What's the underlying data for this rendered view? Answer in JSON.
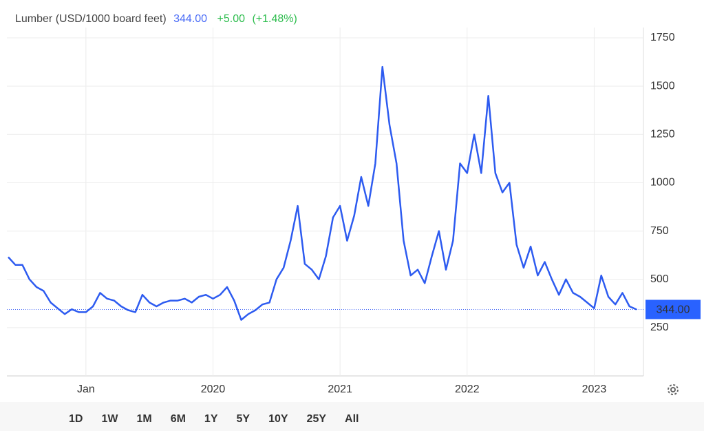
{
  "chart_data": {
    "type": "line",
    "title": "Lumber (USD/1000 board feet)",
    "current": {
      "value": 344,
      "label": "344.00"
    },
    "change": "+5.00",
    "change_pct": "(+1.48%)",
    "categories": [
      null,
      null,
      null,
      null,
      null,
      null,
      null,
      null,
      null,
      null,
      null,
      "Jan",
      null,
      null,
      null,
      null,
      null,
      null,
      null,
      null,
      null,
      null,
      null,
      null,
      null,
      null,
      null,
      null,
      null,
      "2020",
      null,
      null,
      null,
      null,
      null,
      null,
      null,
      null,
      null,
      null,
      null,
      null,
      null,
      null,
      null,
      null,
      null,
      "2021",
      null,
      null,
      null,
      null,
      null,
      null,
      null,
      null,
      null,
      null,
      null,
      null,
      null,
      null,
      null,
      null,
      null,
      "2022",
      null,
      null,
      null,
      null,
      null,
      null,
      null,
      null,
      null,
      null,
      null,
      null,
      null,
      null,
      null,
      null,
      null,
      "2023",
      null,
      null,
      null,
      null,
      null,
      null
    ],
    "series": [
      {
        "name": "Lumber",
        "color": "#2d5bf0",
        "values": [
          615,
          575,
          575,
          500,
          460,
          440,
          380,
          350,
          320,
          345,
          330,
          330,
          360,
          430,
          400,
          390,
          360,
          340,
          330,
          420,
          380,
          360,
          380,
          390,
          390,
          400,
          380,
          410,
          420,
          400,
          420,
          460,
          390,
          290,
          320,
          340,
          370,
          380,
          500,
          560,
          700,
          880,
          580,
          550,
          500,
          620,
          820,
          880,
          700,
          830,
          1030,
          880,
          1100,
          1600,
          1300,
          1100,
          700,
          520,
          550,
          480,
          620,
          750,
          550,
          700,
          1100,
          1050,
          1250,
          1050,
          1450,
          1050,
          950,
          1000,
          680,
          560,
          670,
          520,
          590,
          500,
          420,
          500,
          430,
          410,
          380,
          350,
          520,
          410,
          370,
          430,
          360,
          344
        ]
      }
    ],
    "ylim": [
      0,
      1750
    ],
    "yticks": [
      250,
      500,
      750,
      1000,
      1250,
      1500,
      1750
    ],
    "grid": true,
    "ranges": [
      "1D",
      "1W",
      "1M",
      "6M",
      "1Y",
      "5Y",
      "10Y",
      "25Y",
      "All"
    ],
    "selected_range": "5Y"
  }
}
